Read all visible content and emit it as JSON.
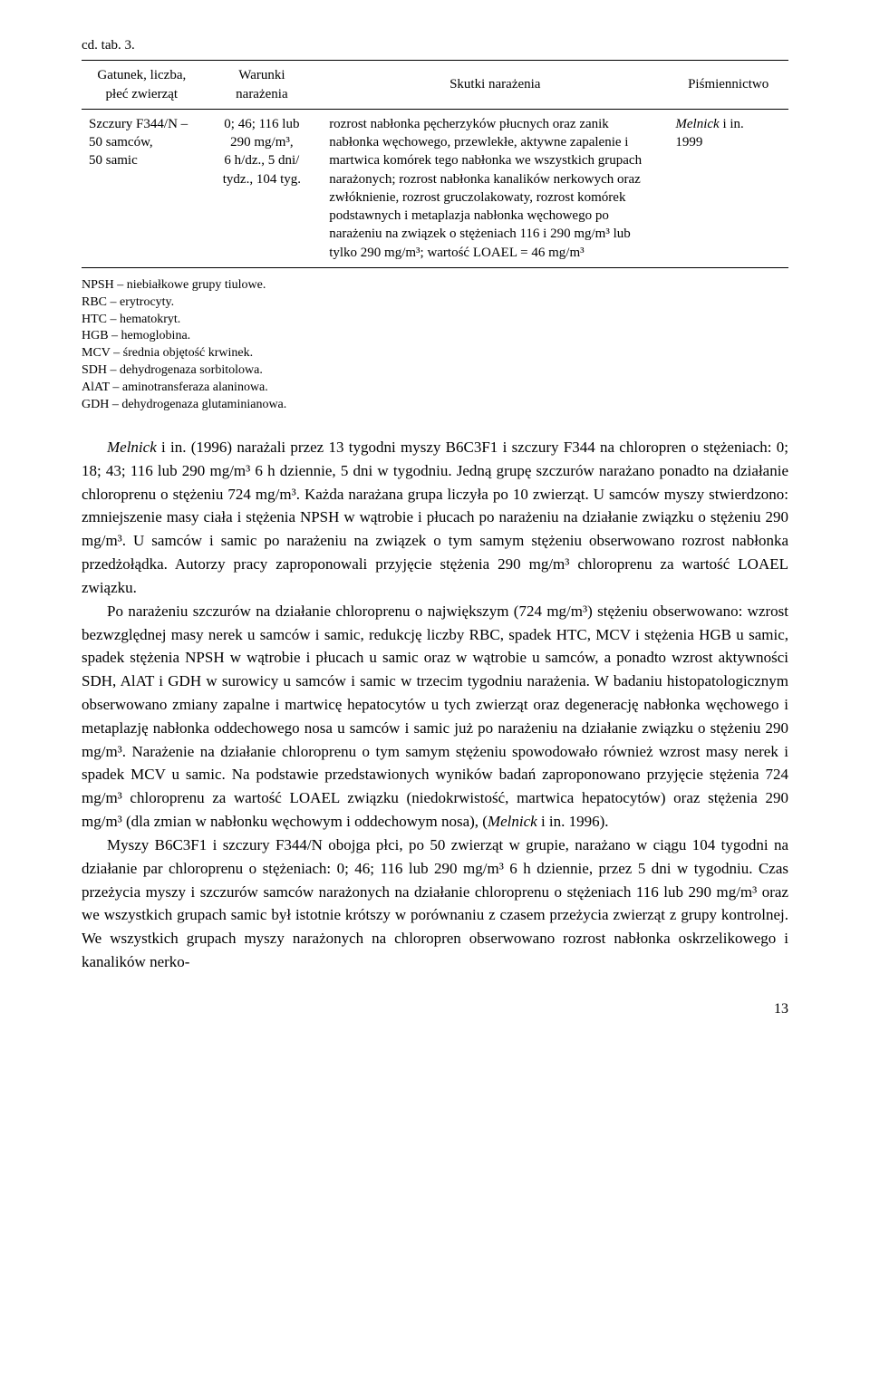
{
  "tableCaption": "cd. tab. 3.",
  "headers": {
    "c1": "Gatunek, liczba,\npłeć zwierząt",
    "c2": "Warunki\nnarażenia",
    "c3": "Skutki narażenia",
    "c4": "Piśmiennictwo"
  },
  "row": {
    "c1": "Szczury F344/N –\n50 samców,\n50 samic",
    "c2": "0; 46; 116 lub\n290 mg/m³,\n6 h/dz., 5 dni/\ntydz., 104 tyg.",
    "c3": "rozrost nabłonka pęcherzyków płucnych oraz zanik nabłonka węchowego, przewlekłe, aktywne zapalenie i martwica komórek tego nabłonka we wszystkich grupach narażonych; rozrost nabłonka kanalików nerkowych oraz zwłóknienie, rozrost gruczolakowaty, rozrost komórek podstawnych i metaplazja nabłonka węchowego po narażeniu na związek o stężeniach 116 i 290 mg/m³ lub tylko 290 mg/m³; wartość LOAEL = 46 mg/m³",
    "c4_author": "Melnick",
    "c4_rest": " i in.",
    "c4_year": "1999"
  },
  "notes": [
    "NPSH – niebiałkowe grupy tiulowe.",
    "RBC – erytrocyty.",
    "HTC – hematokryt.",
    "HGB – hemoglobina.",
    "MCV – średnia objętość krwinek.",
    "SDH – dehydrogenaza sorbitolowa.",
    "AlAT – aminotransferaza alaninowa.",
    "GDH – dehydrogenaza glutaminianowa."
  ],
  "paragraphs": {
    "p1_pre": "Melnick",
    "p1_mid": " i in. (1996) narażali przez 13 tygodni myszy B6C3F1 i szczury F344 na chloropren o stężeniach: 0; 18; 43; 116 lub 290 mg/m³ 6 h dziennie, 5 dni w tygodniu. Jedną grupę szczurów narażano ponadto na działanie chloroprenu o stężeniu 724 mg/m³. Każda narażana grupa liczyła po 10 zwierząt. U samców myszy stwierdzono: zmniejszenie masy ciała i stężenia NPSH w wątrobie i płucach po narażeniu na działanie związku o stężeniu 290 mg/m³. U samców i samic po narażeniu na związek o tym samym stężeniu obserwowano rozrost nabłonka przedżołądka. Autorzy pracy zaproponowali przyjęcie stężenia 290 mg/m³ chloroprenu za wartość LOAEL związku.",
    "p2_a": "Po narażeniu szczurów na działanie chloroprenu o największym (724 mg/m³) stężeniu obserwowano: wzrost bezwzględnej masy nerek u samców i samic, redukcję liczby RBC, spadek HTC, MCV i stężenia HGB u samic, spadek stężenia NPSH w wątrobie i płucach u samic oraz w wątrobie u samców, a ponadto wzrost aktywności SDH, AlAT i GDH w surowicy u samców i samic w trzecim tygodniu narażenia. W badaniu histopatologicznym obserwowano zmiany zapalne i martwicę hepatocytów u tych zwierząt oraz degenerację nabłonka węchowego i metaplazję nabłonka oddechowego nosa u samców i samic już po narażeniu na działanie związku o stężeniu 290 mg/m³. Narażenie na działanie chloroprenu o tym samym stężeniu spowodowało również wzrost masy nerek i spadek MCV u samic. Na podstawie przedstawionych wyników badań zaproponowano przyjęcie stężenia 724 mg/m³ chloroprenu za wartość LOAEL związku (niedokrwistość, martwica hepatocytów) oraz stężenia 290 mg/m³ (dla zmian w nabłonku węchowym i oddechowym nosa), (",
    "p2_b": "Melnick",
    "p2_c": " i in. 1996).",
    "p3": "Myszy B6C3F1 i szczury F344/N obojga płci, po 50 zwierząt w grupie, narażano w ciągu 104 tygodni na działanie par chloroprenu o stężeniach: 0; 46; 116 lub 290 mg/m³ 6 h dziennie, przez 5 dni w tygodniu. Czas przeżycia myszy i szczurów samców narażonych na działanie chloroprenu o stężeniach 116 lub 290 mg/m³ oraz we wszystkich grupach samic był istotnie krótszy w porównaniu z czasem przeżycia zwierząt z grupy kontrolnej. We wszystkich grupach myszy narażonych na chloropren obserwowano rozrost nabłonka oskrzelikowego i kanalików nerko-"
  },
  "pageNumber": "13",
  "style": {
    "bodyFont": "Times New Roman",
    "bodyColor": "#000000",
    "background": "#ffffff",
    "bodyFontSize": 17,
    "tableFontSize": 15,
    "notesFontSize": 14,
    "borderColor": "#000000"
  }
}
